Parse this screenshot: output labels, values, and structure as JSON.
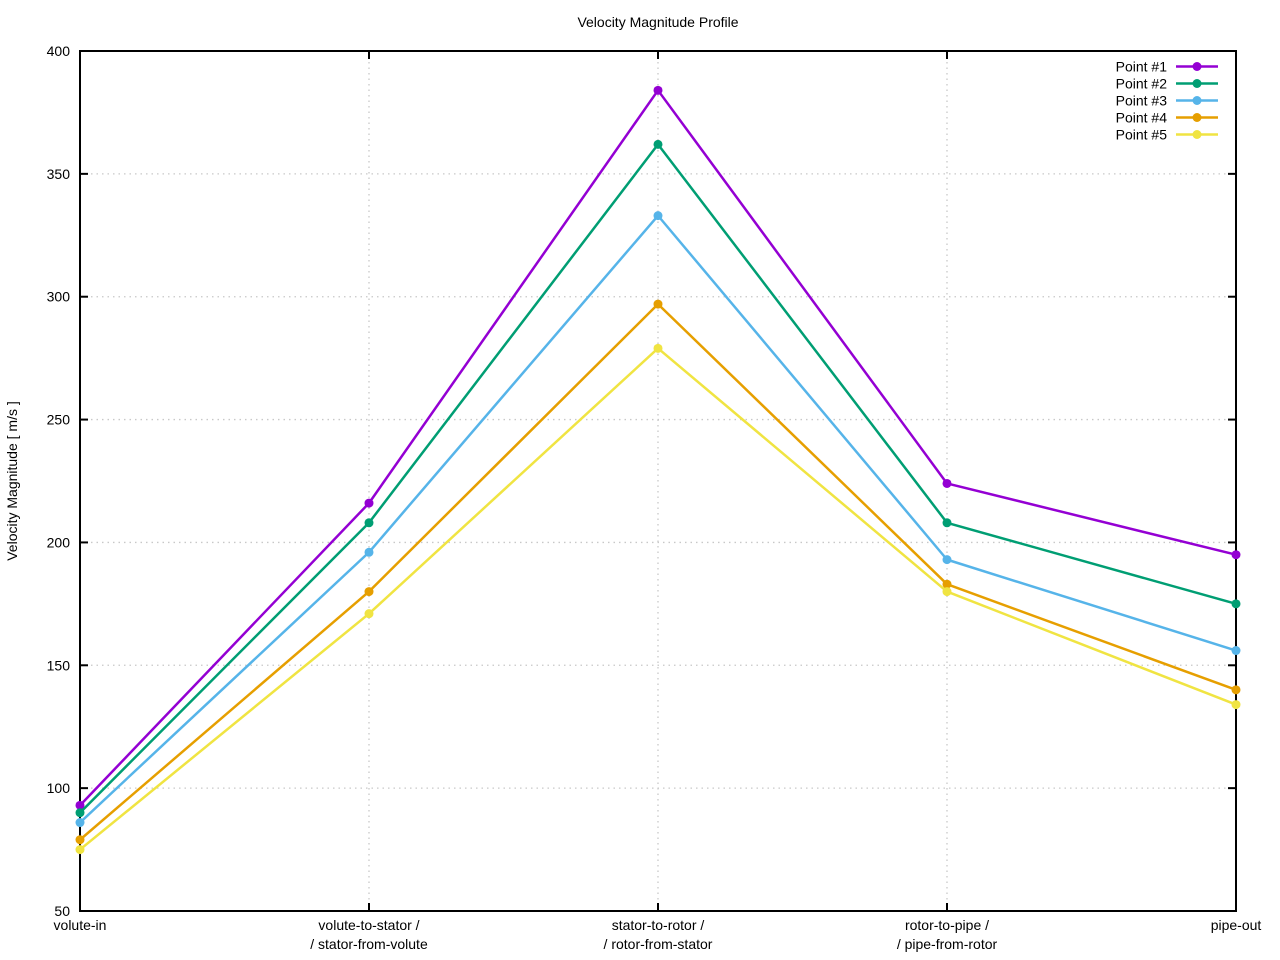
{
  "title": "Velocity Magnitude Profile",
  "chart_data": {
    "type": "line",
    "title": "Velocity Magnitude Profile",
    "xlabel": "",
    "ylabel": "Velocity Magnitude [ m/s ]",
    "ylim": [
      50,
      400
    ],
    "yticks": [
      50,
      100,
      150,
      200,
      250,
      300,
      350,
      400
    ],
    "grid": "dotted",
    "legend_position": "top-right-inside",
    "categories": [
      [
        "volute-in"
      ],
      [
        "volute-to-stator /",
        "/ stator-from-volute"
      ],
      [
        "stator-to-rotor /",
        "/ rotor-from-stator"
      ],
      [
        "rotor-to-pipe /",
        "/ pipe-from-rotor"
      ],
      [
        "pipe-out"
      ]
    ],
    "series": [
      {
        "name": "Point #1",
        "color": "#9400d3",
        "values": [
          93,
          216,
          384,
          224,
          195
        ]
      },
      {
        "name": "Point #2",
        "color": "#009e73",
        "values": [
          90,
          208,
          362,
          208,
          175
        ]
      },
      {
        "name": "Point #3",
        "color": "#56b4e9",
        "values": [
          86,
          196,
          333,
          193,
          156
        ]
      },
      {
        "name": "Point #4",
        "color": "#e69f00",
        "values": [
          79,
          180,
          297,
          183,
          140
        ]
      },
      {
        "name": "Point #5",
        "color": "#f0e442",
        "values": [
          75,
          171,
          279,
          180,
          134
        ]
      }
    ],
    "colors": {
      "background": "#ffffff",
      "axis": "#000000",
      "grid": "#c8c8c8",
      "text": "#000000"
    }
  }
}
